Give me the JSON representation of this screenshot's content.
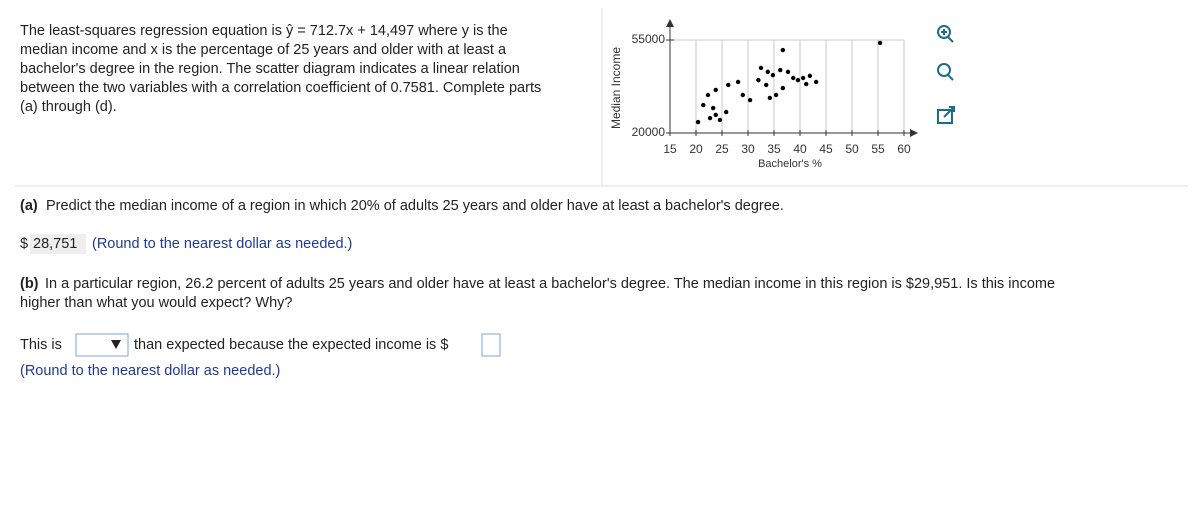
{
  "intro": {
    "lines": [
      "The least-squares regression equation is ŷ = 712.7x + 14,497 where y is the",
      "median income and x is the percentage of 25 years and older with at least a",
      "bachelor's degree in the region. The scatter diagram indicates a linear relation",
      "between the two variables with a correlation coefficient of 0.7581. Complete parts",
      "(a) through (d)."
    ]
  },
  "chart_data": {
    "type": "scatter",
    "x_label": "Bachelor's %",
    "y_label": "Median Income",
    "x": [
      55.4,
      36.7,
      32.5,
      33.8,
      34.8,
      36.2,
      37.7,
      38.7,
      39.6,
      40.6,
      43.1,
      32,
      33.5,
      34.2,
      35.4,
      30.4,
      29,
      28.1,
      26.2,
      22.3,
      23.8,
      21.4,
      22.7,
      23.8,
      24.6,
      25.8,
      20.4,
      23.3,
      36.7,
      41.2,
      41.9
    ],
    "values": [
      53900,
      51200,
      44500,
      43000,
      41800,
      43700,
      43000,
      40700,
      39900,
      40700,
      39200,
      39900,
      38100,
      33200,
      34300,
      32400,
      34300,
      39200,
      38100,
      34300,
      36200,
      30500,
      25600,
      26800,
      24900,
      27900,
      24100,
      29400,
      36900,
      38400,
      41500
    ],
    "color": "#000000",
    "xlim": [
      15,
      60
    ],
    "xticks": [
      15,
      20,
      25,
      30,
      35,
      40,
      45,
      50,
      55,
      60
    ],
    "ylim": [
      20000,
      55000
    ],
    "yticks": [
      20000,
      55000
    ],
    "grid": true
  },
  "part_a": {
    "label": "(a)",
    "question": "Predict the median income of a region in which 20% of adults 25 years and older have at least a bachelor's degree.",
    "currency": "$",
    "answer": "28,751",
    "note": "(Round to the nearest dollar as needed.)"
  },
  "part_b": {
    "label": "(b)",
    "question_lines": [
      "In a particular region, 26.2 percent of adults 25 years and older have at least a bachelor's degree. The median income in this region is $29,951. Is this income",
      "higher than what you would expect? Why?"
    ],
    "prefix": "This is",
    "middle": "than expected because the expected income is $",
    "note": "(Round to the nearest dollar as needed.)"
  }
}
